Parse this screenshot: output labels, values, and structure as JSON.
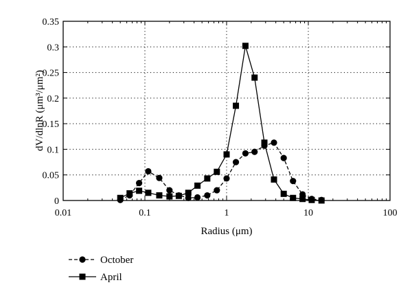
{
  "chart_data": {
    "type": "line",
    "title": "",
    "xlabel": "Radius (μm)",
    "ylabel": "dV/dlnR (μm³/μm²)",
    "x_scale": "log",
    "xlim": [
      0.01,
      100
    ],
    "ylim": [
      0,
      0.35
    ],
    "x_ticks": [
      0.01,
      0.1,
      1,
      10,
      100
    ],
    "x_tick_labels": [
      "0.01",
      "0.1",
      "1",
      "10",
      "100"
    ],
    "y_ticks": [
      0,
      0.05,
      0.1,
      0.15,
      0.2,
      0.25,
      0.3,
      0.35
    ],
    "y_tick_labels": [
      "0",
      "0.05",
      "0.1",
      "0.15",
      "0.2",
      "0.25",
      "0.3",
      "0.35"
    ],
    "grid": "dotted",
    "legend_position": "bottom-left",
    "series": [
      {
        "name": "October",
        "marker": "circle",
        "line_style": "dashed",
        "color": "#000000",
        "x": [
          0.05,
          0.065,
          0.085,
          0.11,
          0.15,
          0.2,
          0.26,
          0.34,
          0.44,
          0.58,
          0.76,
          1.0,
          1.3,
          1.7,
          2.2,
          2.9,
          3.8,
          5.0,
          6.5,
          8.5,
          11.0,
          14.5
        ],
        "y": [
          0.001,
          0.01,
          0.034,
          0.057,
          0.044,
          0.02,
          0.01,
          0.005,
          0.006,
          0.01,
          0.02,
          0.043,
          0.075,
          0.092,
          0.095,
          0.107,
          0.113,
          0.083,
          0.038,
          0.012,
          0.003,
          0.001
        ]
      },
      {
        "name": "April",
        "marker": "square",
        "line_style": "solid",
        "color": "#000000",
        "x": [
          0.05,
          0.065,
          0.085,
          0.11,
          0.15,
          0.2,
          0.26,
          0.34,
          0.44,
          0.58,
          0.76,
          1.0,
          1.3,
          1.7,
          2.2,
          2.9,
          3.8,
          5.0,
          6.5,
          8.5,
          11.0,
          14.5
        ],
        "y": [
          0.005,
          0.014,
          0.019,
          0.015,
          0.01,
          0.008,
          0.009,
          0.015,
          0.029,
          0.043,
          0.056,
          0.09,
          0.185,
          0.302,
          0.24,
          0.113,
          0.041,
          0.013,
          0.005,
          0.003,
          0.001,
          0.0
        ]
      }
    ]
  }
}
